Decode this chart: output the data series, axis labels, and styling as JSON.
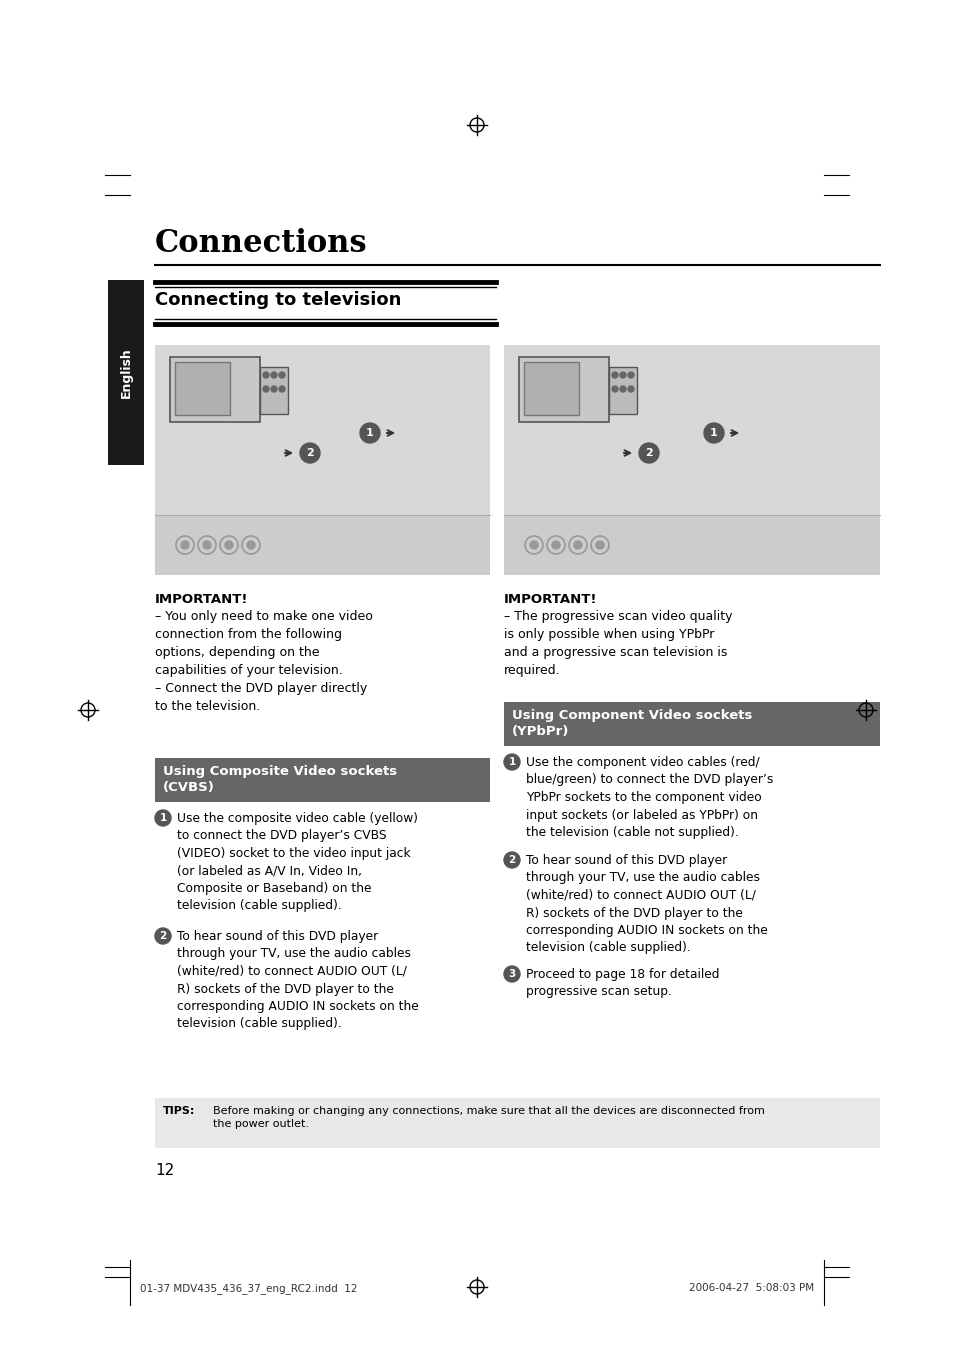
{
  "page_bg": "#ffffff",
  "title": "Connections",
  "subtitle": "Connecting to television",
  "tab_text": "English",
  "tab_bg": "#1a1a1a",
  "tab_text_color": "#ffffff",
  "image_bg": "#d8d8d8",
  "image_bg2": "#cccccc",
  "important_label_left": "IMPORTANT!",
  "important_text_left": "– You only need to make one video\nconnection from the following\noptions, depending on the\ncapabilities of your television.\n– Connect the DVD player directly\nto the television.",
  "important_label_right": "IMPORTANT!",
  "important_text_right": "– The progressive scan video quality\nis only possible when using YPbPr\nand a progressive scan television is\nrequired.",
  "box1_title": "Using Composite Video sockets\n(CVBS)",
  "box1_bg": "#666666",
  "box1_text_color": "#ffffff",
  "box2_title": "Using Component Video sockets\n(YPbPr)",
  "box2_bg": "#666666",
  "box2_text_color": "#ffffff",
  "cvbs_step1": "Use the composite video cable (yellow)\nto connect the DVD player’s CVBS\n(VIDEO) socket to the video input jack\n(or labeled as A/V In, Video In,\nComposite or Baseband) on the\ntelevision (cable supplied).",
  "cvbs_step2": "To hear sound of this DVD player\nthrough your TV, use the audio cables\n(white/red) to connect AUDIO OUT (L/\nR) sockets of the DVD player to the\ncorresponding AUDIO IN sockets on the\ntelevision (cable supplied).",
  "ypbpr_step1": "Use the component video cables (red/\nblue/green) to connect the DVD player’s\nYPbPr sockets to the component video\ninput sockets (or labeled as YPbPr) on\nthe television (cable not supplied).",
  "ypbpr_step2": "To hear sound of this DVD player\nthrough your TV, use the audio cables\n(white/red) to connect AUDIO OUT (L/\nR) sockets of the DVD player to the\ncorresponding AUDIO IN sockets on the\ntelevision (cable supplied).",
  "ypbpr_step3": "Proceed to page 18 for detailed\nprogressive scan setup.",
  "tips_label": "TIPS:",
  "tips_text": "Before making or changing any connections, make sure that all the devices are disconnected from\nthe power outlet.",
  "tips_bg": "#e8e8e8",
  "page_number": "12",
  "footer_left": "01-37 MDV435_436_37_eng_RC2.indd  12",
  "footer_right": "2006-04-27  5:08:03 PM"
}
